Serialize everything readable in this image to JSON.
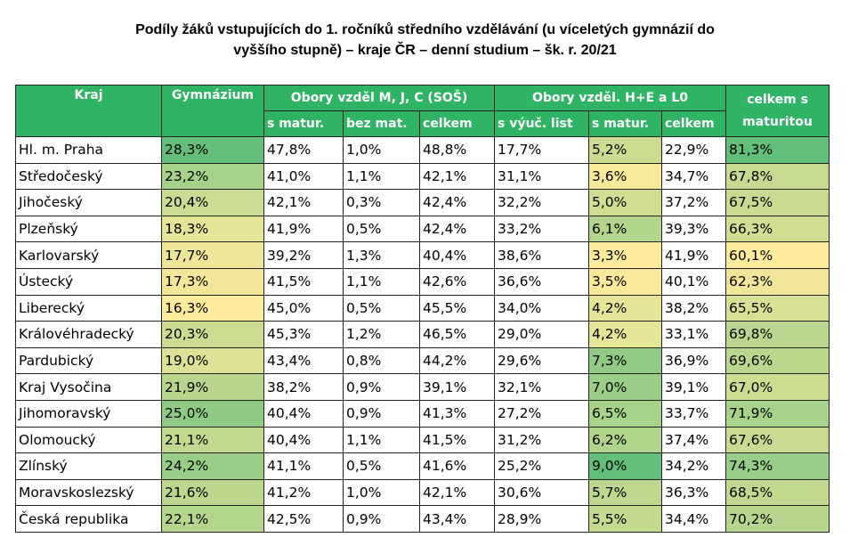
{
  "title_line1": "Podíly žáků vstupujících do 1. ročníků středního vzdělávání (u víceletých gymnázií do",
  "title_line2": "vyššího stupně) – kraje ČR – denní studium – šk. r. 20/21",
  "headers": {
    "kraj": "Kraj",
    "gymnazium": "Gymnázium",
    "group_mjc": "Obory vzděl M, J, C (SOŠ)",
    "group_he": "Obory vzděl. H+E a L0",
    "total_line1": "celkem s",
    "total_line2": "maturitou",
    "s_matur": "s matur.",
    "bez_mat": "bez mat.",
    "celkem": "celkem",
    "s_vyuc": "s výuč. list",
    "s_matur2": "s matur.",
    "celkem2": "celkem"
  },
  "colors": {
    "header_bg": "#2eb464",
    "scale_low": "#ffeb9c",
    "scale_high": "#63be7b"
  },
  "rows": [
    {
      "kraj": "Hl. m. Praha",
      "gym": "28,3%",
      "sm": "47,8%",
      "bm": "1,0%",
      "cm": "48,8%",
      "vl": "17,7%",
      "sm2": "5,2%",
      "c2": "22,9%",
      "tot": "81,3%"
    },
    {
      "kraj": "Středočeský",
      "gym": "23,2%",
      "sm": "41,0%",
      "bm": "1,1%",
      "cm": "42,1%",
      "vl": "31,1%",
      "sm2": "3,6%",
      "c2": "34,7%",
      "tot": "67,8%"
    },
    {
      "kraj": "Jihočeský",
      "gym": "20,4%",
      "sm": "42,1%",
      "bm": "0,3%",
      "cm": "42,4%",
      "vl": "32,2%",
      "sm2": "5,0%",
      "c2": "37,2%",
      "tot": "67,5%"
    },
    {
      "kraj": "Plzeňský",
      "gym": "18,3%",
      "sm": "41,9%",
      "bm": "0,5%",
      "cm": "42,4%",
      "vl": "33,2%",
      "sm2": "6,1%",
      "c2": "39,3%",
      "tot": "66,3%"
    },
    {
      "kraj": "Karlovarský",
      "gym": "17,7%",
      "sm": "39,2%",
      "bm": "1,3%",
      "cm": "40,4%",
      "vl": "38,6%",
      "sm2": "3,3%",
      "c2": "41,9%",
      "tot": "60,1%"
    },
    {
      "kraj": "Ústecký",
      "gym": "17,3%",
      "sm": "41,5%",
      "bm": "1,1%",
      "cm": "42,6%",
      "vl": "36,6%",
      "sm2": "3,5%",
      "c2": "40,1%",
      "tot": "62,3%"
    },
    {
      "kraj": "Liberecký",
      "gym": "16,3%",
      "sm": "45,0%",
      "bm": "0,5%",
      "cm": "45,5%",
      "vl": "34,0%",
      "sm2": "4,2%",
      "c2": "38,2%",
      "tot": "65,5%"
    },
    {
      "kraj": "Královéhradecký",
      "gym": "20,3%",
      "sm": "45,3%",
      "bm": "1,2%",
      "cm": "46,5%",
      "vl": "29,0%",
      "sm2": "4,2%",
      "c2": "33,1%",
      "tot": "69,8%"
    },
    {
      "kraj": "Pardubický",
      "gym": "19,0%",
      "sm": "43,4%",
      "bm": "0,8%",
      "cm": "44,2%",
      "vl": "29,6%",
      "sm2": "7,3%",
      "c2": "36,9%",
      "tot": "69,6%"
    },
    {
      "kraj": "Kraj Vysočina",
      "gym": "21,9%",
      "sm": "38,2%",
      "bm": "0,9%",
      "cm": "39,1%",
      "vl": "32,1%",
      "sm2": "7,0%",
      "c2": "39,1%",
      "tot": "67,0%"
    },
    {
      "kraj": "Jihomoravský",
      "gym": "25,0%",
      "sm": "40,4%",
      "bm": "0,9%",
      "cm": "41,3%",
      "vl": "27,2%",
      "sm2": "6,5%",
      "c2": "33,7%",
      "tot": "71,9%"
    },
    {
      "kraj": "Olomoucký",
      "gym": "21,1%",
      "sm": "40,4%",
      "bm": "1,1%",
      "cm": "41,5%",
      "vl": "31,2%",
      "sm2": "6,2%",
      "c2": "37,4%",
      "tot": "67,6%"
    },
    {
      "kraj": "Zlínský",
      "gym": "24,2%",
      "sm": "41,1%",
      "bm": "0,5%",
      "cm": "41,6%",
      "vl": "25,2%",
      "sm2": "9,0%",
      "c2": "34,2%",
      "tot": "74,3%"
    },
    {
      "kraj": "Moravskoslezský",
      "gym": "21,6%",
      "sm": "41,2%",
      "bm": "1,0%",
      "cm": "42,1%",
      "vl": "30,6%",
      "sm2": "5,7%",
      "c2": "36,3%",
      "tot": "68,5%"
    },
    {
      "kraj": "Česká republika",
      "gym": "22,1%",
      "sm": "42,5%",
      "bm": "0,9%",
      "cm": "43,4%",
      "vl": "28,9%",
      "sm2": "5,5%",
      "c2": "34,4%",
      "tot": "70,2%"
    }
  ]
}
